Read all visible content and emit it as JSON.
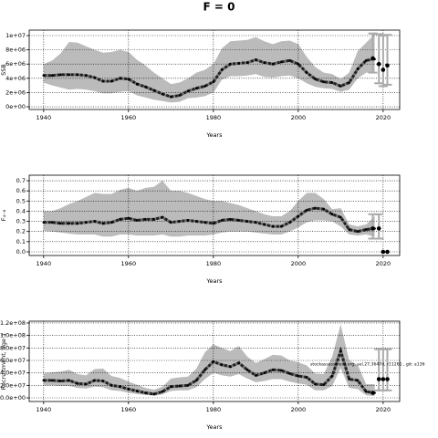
{
  "title": "F = 0",
  "chart_data": [
    {
      "type": "line",
      "y_label": "SSB",
      "x_label": "Years",
      "xlim": [
        1936.6,
        2023.9
      ],
      "xticks": [
        1940,
        1960,
        1980,
        2000,
        2020
      ],
      "ylim": [
        -380000,
        10770000
      ],
      "yticks": [
        {
          "value": 0,
          "label": "0e+00"
        },
        {
          "value": 2000000,
          "label": "2e+06"
        },
        {
          "value": 4000000,
          "label": "4e+06"
        },
        {
          "value": 6000000,
          "label": "6e+06"
        },
        {
          "value": 8000000,
          "label": "8e+06"
        },
        {
          "value": 10000000,
          "label": "1e+07"
        }
      ],
      "grid": true,
      "color": "#222222",
      "band_color": "#bbbbbb",
      "bar_color": "#aaaaaa",
      "x": [
        1940,
        1942,
        1944,
        1946,
        1948,
        1950,
        1952,
        1954,
        1956,
        1958,
        1960,
        1962,
        1964,
        1966,
        1968,
        1970,
        1972,
        1974,
        1976,
        1978,
        1980,
        1982,
        1984,
        1986,
        1988,
        1990,
        1992,
        1994,
        1996,
        1998,
        2000,
        2002,
        2004,
        2006,
        2008,
        2010,
        2012,
        2014,
        2016,
        2018
      ],
      "values": [
        4400000.0,
        4400000.0,
        4500000.0,
        4500000.0,
        4500000.0,
        4400000.0,
        4100000.0,
        3600000.0,
        3600000.0,
        4000000.0,
        3900000.0,
        3200000.0,
        2800000.0,
        2300000.0,
        1800000.0,
        1400000.0,
        1600000.0,
        2200000.0,
        2600000.0,
        2900000.0,
        3500000.0,
        5200000.0,
        6000000.0,
        6100000.0,
        6200000.0,
        6600000.0,
        6200000.0,
        6000000.0,
        6300000.0,
        6500000.0,
        6000000.0,
        4800000.0,
        3900000.0,
        3500000.0,
        3400000.0,
        2900000.0,
        3400000.0,
        5300000.0,
        6500000.0,
        6700000.0
      ],
      "upper": [
        6000000.0,
        6500000.0,
        7500000.0,
        9100000.0,
        9000000.0,
        8500000.0,
        8000000.0,
        7600000.0,
        7700000.0,
        8000000.0,
        7700000.0,
        6600000.0,
        5800000.0,
        4800000.0,
        4000000.0,
        3200000.0,
        3400000.0,
        4000000.0,
        4800000.0,
        5200000.0,
        6000000.0,
        8200000.0,
        9200000.0,
        9300000.0,
        9400000.0,
        9800000.0,
        9200000.0,
        8800000.0,
        9200000.0,
        9300000.0,
        8800000.0,
        7000000.0,
        5600000.0,
        4800000.0,
        4600000.0,
        3900000.0,
        4800000.0,
        7800000.0,
        9000000.0,
        10200000.0
      ],
      "lower": [
        3400000.0,
        3000000.0,
        2700000.0,
        2400000.0,
        2500000.0,
        2400000.0,
        2200000.0,
        1900000.0,
        1900000.0,
        2100000.0,
        2200000.0,
        1600000.0,
        1300000.0,
        1000000.0,
        800000.0,
        600000.0,
        700000.0,
        1200000.0,
        1300000.0,
        1500000.0,
        2000000.0,
        3800000.0,
        4300000.0,
        4300000.0,
        4400000.0,
        4600000.0,
        4200000.0,
        4100000.0,
        4300000.0,
        4400000.0,
        4000000.0,
        3300000.0,
        2800000.0,
        2600000.0,
        2500000.0,
        2100000.0,
        2400000.0,
        4000000.0,
        4800000.0,
        4800000.0
      ],
      "proj_x": [
        2018,
        2019,
        2020,
        2021
      ],
      "proj_values": [
        6800000.0,
        6000000.0,
        5200000.0,
        5800000.0
      ],
      "proj_lower": [
        4800000.0,
        3300000.0,
        2900000.0,
        3100000.0
      ],
      "proj_upper": [
        10300000.0,
        10200000.0,
        10000000.0,
        10100000.0
      ]
    },
    {
      "type": "line",
      "y_label": "F₄₋₈",
      "x_label": "Years",
      "xlim": [
        1936.6,
        2023.9
      ],
      "xticks": [
        1940,
        1960,
        1980,
        2000,
        2020
      ],
      "ylim": [
        -0.036,
        0.754
      ],
      "yticks": [
        {
          "value": 0,
          "label": "0.0"
        },
        0.1,
        0.2,
        0.3,
        0.4,
        0.5,
        0.6,
        0.7
      ],
      "grid": true,
      "color": "#222222",
      "band_color": "#bbbbbb",
      "bar_color": "#aaaaaa",
      "x": [
        1940,
        1942,
        1944,
        1946,
        1948,
        1950,
        1952,
        1954,
        1956,
        1958,
        1960,
        1962,
        1964,
        1966,
        1968,
        1970,
        1972,
        1974,
        1976,
        1978,
        1980,
        1982,
        1984,
        1986,
        1988,
        1990,
        1992,
        1994,
        1996,
        1998,
        2000,
        2002,
        2004,
        2006,
        2008,
        2010,
        2012,
        2014,
        2016,
        2018
      ],
      "values": [
        0.29,
        0.29,
        0.28,
        0.28,
        0.28,
        0.29,
        0.3,
        0.28,
        0.29,
        0.32,
        0.33,
        0.31,
        0.32,
        0.32,
        0.34,
        0.29,
        0.3,
        0.31,
        0.3,
        0.29,
        0.28,
        0.31,
        0.32,
        0.31,
        0.3,
        0.29,
        0.27,
        0.25,
        0.25,
        0.29,
        0.35,
        0.41,
        0.43,
        0.42,
        0.37,
        0.34,
        0.22,
        0.2,
        0.22,
        0.23
      ],
      "upper": [
        0.4,
        0.4,
        0.43,
        0.47,
        0.5,
        0.54,
        0.58,
        0.57,
        0.57,
        0.61,
        0.63,
        0.6,
        0.63,
        0.64,
        0.7,
        0.6,
        0.6,
        0.58,
        0.55,
        0.52,
        0.5,
        0.5,
        0.48,
        0.46,
        0.43,
        0.4,
        0.37,
        0.35,
        0.35,
        0.4,
        0.5,
        0.58,
        0.58,
        0.52,
        0.42,
        0.43,
        0.27,
        0.25,
        0.27,
        0.35
      ],
      "lower": [
        0.21,
        0.2,
        0.19,
        0.18,
        0.17,
        0.17,
        0.17,
        0.15,
        0.15,
        0.17,
        0.17,
        0.16,
        0.16,
        0.16,
        0.17,
        0.15,
        0.15,
        0.16,
        0.16,
        0.16,
        0.17,
        0.19,
        0.2,
        0.2,
        0.2,
        0.19,
        0.18,
        0.17,
        0.17,
        0.2,
        0.24,
        0.29,
        0.31,
        0.31,
        0.3,
        0.25,
        0.17,
        0.16,
        0.17,
        0.15
      ],
      "proj_x": [
        2018,
        2019,
        2020,
        2021
      ],
      "proj_values": [
        0.23,
        0.23,
        0,
        0
      ],
      "proj_lower": [
        0.13,
        0.13,
        null,
        null
      ],
      "proj_upper": [
        0.37,
        0.37,
        null,
        null
      ]
    },
    {
      "type": "line",
      "y_label": "Recruitment, age 1",
      "x_label": "Years",
      "annotation": "stockassessment.org, sel.27,3647d, r11261 , git: a136",
      "xlim": [
        1936.6,
        2023.9
      ],
      "xticks": [
        1940,
        1960,
        1980,
        2000,
        2020
      ],
      "ylim": [
        -5850000,
        122900000
      ],
      "yticks": [
        {
          "value": 0,
          "label": "0.0e+00"
        },
        {
          "value": 20000000,
          "label": "2.0e+07"
        },
        {
          "value": 40000000,
          "label": "4.0e+07"
        },
        {
          "value": 60000000,
          "label": "6.0e+07"
        },
        {
          "value": 80000000,
          "label": "8.0e+07"
        },
        {
          "value": 100000000,
          "label": "1.0e+08"
        },
        {
          "value": 120000000,
          "label": "1.2e+08"
        }
      ],
      "grid": true,
      "color": "#222222",
      "band_color": "#bbbbbb",
      "bar_color": "#aaaaaa",
      "x": [
        1940,
        1942,
        1944,
        1946,
        1948,
        1950,
        1952,
        1954,
        1956,
        1958,
        1960,
        1962,
        1964,
        1966,
        1968,
        1970,
        1972,
        1974,
        1976,
        1978,
        1980,
        1982,
        1984,
        1986,
        1988,
        1990,
        1992,
        1994,
        1996,
        1998,
        2000,
        2002,
        2004,
        2006,
        2008,
        2010,
        2012,
        2014,
        2016,
        2018
      ],
      "values": [
        28000000.0,
        28000000.0,
        27000000.0,
        28000000.0,
        23000000.0,
        22000000.0,
        28000000.0,
        27000000.0,
        20000000.0,
        18000000.0,
        14000000.0,
        11000000.0,
        8000000.0,
        6000000.0,
        10000000.0,
        18000000.0,
        19000000.0,
        20000000.0,
        28000000.0,
        45000000.0,
        58000000.0,
        53000000.0,
        50000000.0,
        56000000.0,
        45000000.0,
        36000000.0,
        40000000.0,
        45000000.0,
        44000000.0,
        39000000.0,
        35000000.0,
        33000000.0,
        22000000.0,
        21000000.0,
        35000000.0,
        75000000.0,
        30000000.0,
        28000000.0,
        10000000.0,
        8000000.0
      ],
      "upper": [
        39000000.0,
        41000000.0,
        42000000.0,
        45000000.0,
        38000000.0,
        36000000.0,
        46000000.0,
        47000000.0,
        35000000.0,
        32000000.0,
        26000000.0,
        21000000.0,
        16000000.0,
        13000000.0,
        18000000.0,
        31000000.0,
        33000000.0,
        34000000.0,
        47000000.0,
        73000000.0,
        86000000.0,
        80000000.0,
        75000000.0,
        83000000.0,
        66000000.0,
        56000000.0,
        62000000.0,
        69000000.0,
        68000000.0,
        60000000.0,
        57000000.0,
        52000000.0,
        39000000.0,
        38000000.0,
        66000000.0,
        118000000.0,
        60000000.0,
        53000000.0,
        22000000.0,
        22000000.0
      ],
      "lower": [
        20000000.0,
        20000000.0,
        19000000.0,
        19000000.0,
        16000000.0,
        15000000.0,
        18000000.0,
        17000000.0,
        12000000.0,
        11000000.0,
        8000000.0,
        6000000.0,
        4500000.0,
        3500000.0,
        5500000.0,
        11000000.0,
        12000000.0,
        12000000.0,
        17000000.0,
        30000000.0,
        40000000.0,
        36000000.0,
        34000000.0,
        38000000.0,
        31000000.0,
        25000000.0,
        27000000.0,
        30000000.0,
        30000000.0,
        26000000.0,
        23000000.0,
        21000000.0,
        12000000.0,
        12000000.0,
        19000000.0,
        48000000.0,
        16000000.0,
        14000000.0,
        4000000.0,
        3000000.0
      ],
      "proj_x": [
        2018,
        2019,
        2020,
        2021
      ],
      "proj_values": [
        8000000.0,
        30000000.0,
        30000000.0,
        30000000.0
      ],
      "proj_lower": [
        null,
        12000000.0,
        12000000.0,
        12000000.0
      ],
      "proj_upper": [
        null,
        78000000.0,
        78000000.0,
        78000000.0
      ]
    }
  ]
}
